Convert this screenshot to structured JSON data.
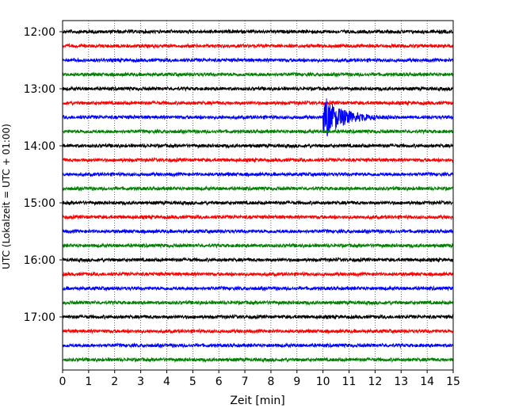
{
  "chart_data": {
    "type": "line",
    "title": "",
    "xlabel": "Zeit  [min]",
    "ylabel": "UTC (Lokalzeit = UTC + 01:00)",
    "xlim": [
      0,
      15
    ],
    "xticks": [
      0,
      1,
      2,
      3,
      4,
      5,
      6,
      7,
      8,
      9,
      10,
      11,
      12,
      13,
      14,
      15
    ],
    "x_grid": "dotted",
    "y_tick_labels": [
      "12:00",
      "13:00",
      "14:00",
      "15:00",
      "16:00",
      "17:00"
    ],
    "trace_interval_minutes": 15,
    "trace_colors_cycle": [
      "#000000",
      "#ff0000",
      "#0000ff",
      "#008000"
    ],
    "series": [
      {
        "start": "12:00",
        "color": "#000000"
      },
      {
        "start": "12:15",
        "color": "#ff0000"
      },
      {
        "start": "12:30",
        "color": "#0000ff"
      },
      {
        "start": "12:45",
        "color": "#008000"
      },
      {
        "start": "13:00",
        "color": "#000000"
      },
      {
        "start": "13:15",
        "color": "#ff0000"
      },
      {
        "start": "13:30",
        "color": "#0000ff",
        "event": {
          "onset_min": 10.0,
          "duration_min": 3.8,
          "peak_amplitude_rel": 1.0
        }
      },
      {
        "start": "13:45",
        "color": "#008000"
      },
      {
        "start": "14:00",
        "color": "#000000"
      },
      {
        "start": "14:15",
        "color": "#ff0000"
      },
      {
        "start": "14:30",
        "color": "#0000ff"
      },
      {
        "start": "14:45",
        "color": "#008000"
      },
      {
        "start": "15:00",
        "color": "#000000"
      },
      {
        "start": "15:15",
        "color": "#ff0000"
      },
      {
        "start": "15:30",
        "color": "#0000ff"
      },
      {
        "start": "15:45",
        "color": "#008000"
      },
      {
        "start": "16:00",
        "color": "#000000"
      },
      {
        "start": "16:15",
        "color": "#ff0000"
      },
      {
        "start": "16:30",
        "color": "#0000ff"
      },
      {
        "start": "16:45",
        "color": "#008000"
      },
      {
        "start": "17:00",
        "color": "#000000"
      },
      {
        "start": "17:15",
        "color": "#ff0000"
      },
      {
        "start": "17:30",
        "color": "#0000ff"
      },
      {
        "start": "17:45",
        "color": "#008000"
      }
    ]
  }
}
